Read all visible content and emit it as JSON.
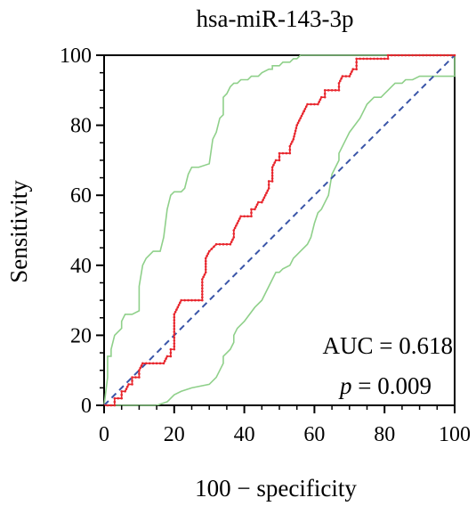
{
  "chart_data": {
    "type": "line",
    "title": "hsa-miR-143-3p",
    "xlabel": "100 − specificity",
    "ylabel": "Sensitivity",
    "xlim": [
      0,
      100
    ],
    "ylim": [
      0,
      100
    ],
    "xticks": [
      "0",
      "20",
      "40",
      "60",
      "80",
      "100"
    ],
    "yticks": [
      "0",
      "20",
      "40",
      "60",
      "80",
      "100"
    ],
    "grid": false,
    "colors": {
      "roc": "#e8262d",
      "ci": "#8fd08a",
      "reference": "#3a55a8"
    },
    "annotations": {
      "auc_text": "AUC = 0.618",
      "p_label": "p",
      "p_value_text": " = 0.009"
    },
    "series": [
      {
        "role": "roc",
        "x": [
          0,
          2,
          3,
          3,
          4,
          5,
          5,
          6,
          7,
          8,
          8,
          9,
          10,
          10,
          11,
          13,
          15,
          17,
          18,
          19,
          19,
          20,
          20,
          21,
          22,
          25,
          27,
          28,
          28,
          29,
          29,
          30,
          32,
          34,
          36,
          37,
          37,
          38,
          39,
          40,
          42,
          42,
          43,
          44,
          45,
          45,
          46,
          47,
          47,
          48,
          48,
          49,
          50,
          50,
          51,
          52,
          53,
          53,
          54,
          55,
          56,
          57,
          57,
          58,
          60,
          61,
          62,
          63,
          63,
          64,
          65,
          67,
          67,
          68,
          69,
          70,
          71,
          71,
          72,
          72,
          73,
          75,
          77,
          79,
          81,
          81,
          83,
          85,
          87,
          89,
          91,
          93,
          95,
          97,
          99,
          100
        ],
        "y": [
          0,
          0,
          0,
          2,
          2,
          2,
          4,
          4,
          6,
          6,
          8,
          8,
          8,
          10,
          12,
          12,
          12,
          12,
          14,
          14,
          16,
          16,
          26,
          28,
          30,
          30,
          30,
          30,
          36,
          38,
          42,
          44,
          46,
          46,
          46,
          48,
          50,
          52,
          54,
          54,
          54,
          56,
          56,
          58,
          58,
          58,
          60,
          62,
          64,
          64,
          68,
          70,
          70,
          72,
          72,
          72,
          72,
          74,
          76,
          80,
          82,
          84,
          84,
          86,
          86,
          86,
          88,
          88,
          90,
          90,
          90,
          90,
          92,
          94,
          94,
          94,
          96,
          96,
          96,
          99,
          99,
          99,
          99,
          99,
          99,
          100,
          100,
          100,
          100,
          100,
          100,
          100,
          100,
          100,
          100,
          100
        ]
      },
      {
        "role": "ci-upper",
        "x": [
          0,
          0.5,
          1,
          1,
          2,
          2,
          3,
          4,
          5,
          5,
          6,
          8,
          10,
          10,
          11,
          12,
          14,
          16,
          16,
          17,
          18,
          19,
          20,
          22,
          23,
          24,
          25,
          27,
          30,
          31,
          32,
          33,
          34,
          34,
          35,
          36,
          37,
          37,
          38,
          39,
          41,
          42,
          44,
          45,
          47,
          48,
          48,
          50,
          51,
          51,
          52,
          53,
          54,
          55,
          56,
          57,
          60,
          65,
          70,
          75,
          80,
          85,
          90,
          95,
          100
        ],
        "y": [
          0,
          4,
          8,
          14,
          14,
          16,
          20,
          21,
          22,
          24,
          26,
          26,
          27,
          34,
          40,
          42,
          44,
          44,
          44,
          48,
          56,
          60,
          61,
          61,
          62,
          66,
          68,
          68,
          69,
          76,
          78,
          82,
          83,
          88,
          89,
          91,
          92,
          92,
          92,
          93,
          93,
          94,
          94,
          95,
          96,
          96,
          97,
          97,
          98,
          98,
          98,
          98,
          99,
          99,
          100,
          100,
          100,
          100,
          100,
          100,
          100,
          100,
          100,
          100,
          100
        ]
      },
      {
        "role": "ci-lower",
        "x": [
          0,
          5,
          10,
          15,
          18,
          20,
          22,
          25,
          30,
          32,
          33,
          34,
          34,
          36,
          37,
          37,
          38,
          40,
          43,
          45,
          46,
          47,
          48,
          49,
          50,
          51,
          53,
          54,
          55,
          56,
          58,
          59,
          60,
          61,
          62,
          63,
          64,
          65,
          66,
          67,
          67,
          68,
          69,
          70,
          73,
          75,
          77,
          79,
          80,
          81,
          82,
          83,
          85,
          86,
          88,
          90,
          92,
          94,
          96,
          97,
          98,
          100,
          100
        ],
        "y": [
          0,
          0,
          0,
          0,
          1,
          3,
          4,
          5,
          6,
          8,
          10,
          12,
          14,
          16,
          18,
          20,
          22,
          24,
          28,
          30,
          32,
          34,
          36,
          38,
          38,
          39,
          40,
          42,
          43,
          44,
          46,
          48,
          52,
          55,
          56,
          58,
          60,
          66,
          68,
          70,
          72,
          74,
          76,
          78,
          82,
          86,
          88,
          88,
          89,
          90,
          91,
          92,
          92,
          93,
          93,
          94,
          94,
          94,
          94,
          94,
          94,
          94,
          100
        ]
      },
      {
        "role": "reference",
        "x": [
          0,
          100
        ],
        "y": [
          0,
          100
        ]
      }
    ]
  }
}
